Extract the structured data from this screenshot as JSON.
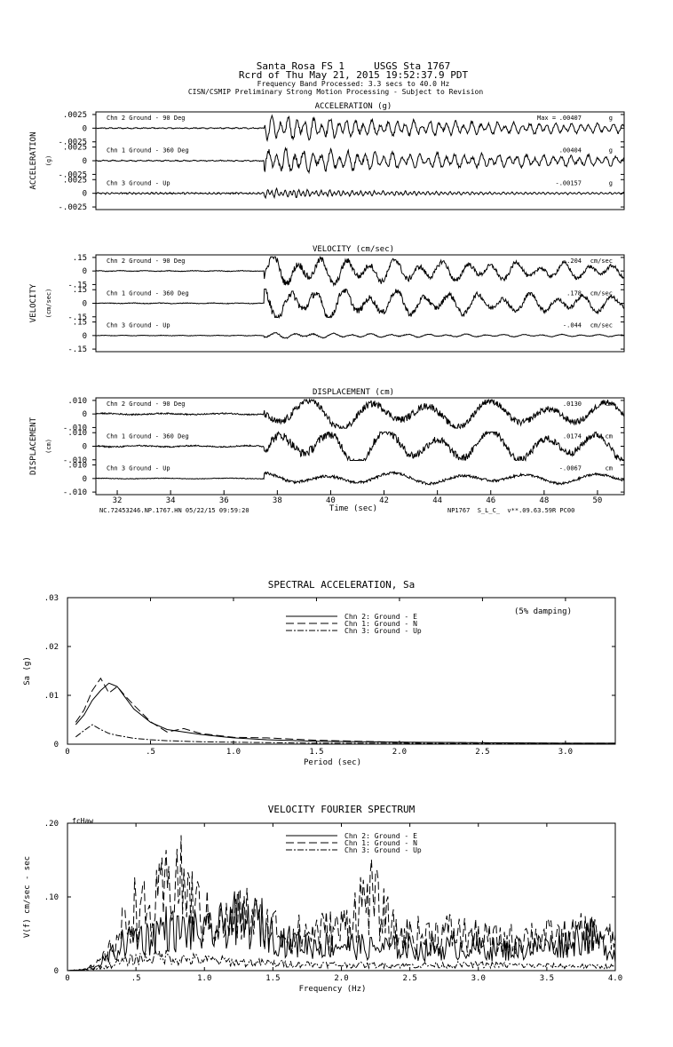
{
  "header": {
    "line1": "Santa Rosa FS 1     USGS Sta 1767",
    "line2": "Rcrd of Thu May 21, 2015 19:52:37.9 PDT",
    "line3": "Frequency Band Processed: 3.3 secs to 40.0 Hz",
    "line4": "CISN/CSMIP Preliminary Strong Motion Processing - Subject to Revision"
  },
  "footer": {
    "left": "NC.72453246.NP.1767.HN 05/22/15 09:59:20",
    "right": "NP1767  S_L_C_  v**.09.63.59R PC00"
  },
  "time_axis": {
    "label": "Time (sec)",
    "ticks": [
      "32",
      "34",
      "36",
      "38",
      "40",
      "42",
      "44",
      "46",
      "48",
      "50"
    ]
  },
  "stamp": "fcHaw",
  "colors": {
    "ink": "#000000",
    "background": "#ffffff"
  },
  "chart_data": [
    {
      "type": "line",
      "title": "ACCELERATION (g)",
      "ylabel": "ACCELERATION",
      "yunit": "(g)",
      "xlim": [
        31.2,
        51
      ],
      "ylim": [
        -0.0025,
        0.0025
      ],
      "tick_top": ".0025",
      "tick_zero": "0",
      "tick_bottom": "-.0025",
      "max_prefix": "Max =",
      "series": [
        {
          "name": "Chn 2  Ground - 90 Deg",
          "peak": ".00407",
          "unit": "g",
          "onset": 37.5,
          "amp": 0.0016,
          "pre": 0.00012,
          "freq": 3.2,
          "decay": 9,
          "residual": 0.00042
        },
        {
          "name": "Chn 1  Ground - 360 Deg",
          "peak": ".00404",
          "unit": "g",
          "onset": 37.5,
          "amp": 0.0015,
          "pre": 0.00012,
          "freq": 3.0,
          "decay": 9,
          "residual": 0.00052
        },
        {
          "name": "Chn 3  Ground - Up",
          "peak": "-.00157",
          "unit": "g",
          "onset": 37.5,
          "amp": 0.00065,
          "pre": 0.00018,
          "freq": 6.0,
          "decay": 5,
          "residual": 0.00012
        }
      ]
    },
    {
      "type": "line",
      "title": "VELOCITY (cm/sec)",
      "ylabel": "VELOCITY",
      "yunit": "(cm/sec)",
      "xlim": [
        31.2,
        51
      ],
      "ylim": [
        -0.15,
        0.15
      ],
      "tick_top": ".15",
      "tick_zero": "0",
      "tick_bottom": "-.15",
      "series": [
        {
          "name": "Chn 2  Ground - 90 Deg",
          "peak": "-.204",
          "unit": "cm/sec",
          "onset": 37.5,
          "amp": 0.12,
          "pre": 0.006,
          "freq": 1.1,
          "decay": 10,
          "residual": 0.045
        },
        {
          "name": "Chn 1  Ground - 360 Deg",
          "peak": ".178",
          "unit": "cm/sec",
          "onset": 37.5,
          "amp": 0.13,
          "pre": 0.006,
          "freq": 1.0,
          "decay": 10,
          "residual": 0.05
        },
        {
          "name": "Chn 3  Ground - Up",
          "peak": "-.044",
          "unit": "cm/sec",
          "onset": 37.5,
          "amp": 0.022,
          "pre": 0.004,
          "freq": 1.4,
          "decay": 6,
          "residual": 0.008
        }
      ]
    },
    {
      "type": "line",
      "title": "DISPLACEMENT (cm)",
      "ylabel": "DISPLACEMENT",
      "yunit": "(cm)",
      "xlim": [
        31.2,
        51
      ],
      "ylim": [
        -0.01,
        0.01
      ],
      "tick_top": ".010",
      "tick_zero": "0",
      "tick_bottom": "-.010",
      "series": [
        {
          "name": "Chn 2  Ground - 90 Deg",
          "peak": ".0130",
          "unit": "cm",
          "onset": 37.5,
          "amp": 0.006,
          "pre": 0.0008,
          "freq": 0.45,
          "decay": 25,
          "residual": 0.005
        },
        {
          "name": "Chn 1  Ground - 360 Deg",
          "peak": ".0174",
          "unit": "cm",
          "onset": 37.5,
          "amp": 0.007,
          "pre": 0.0008,
          "freq": 0.5,
          "decay": 25,
          "residual": 0.006
        },
        {
          "name": "Chn 3  Ground - Up",
          "peak": "-.0067",
          "unit": "cm",
          "onset": 37.5,
          "amp": 0.0022,
          "pre": 0.0004,
          "freq": 0.4,
          "decay": 25,
          "residual": 0.002
        }
      ]
    },
    {
      "type": "line",
      "title": "SPECTRAL ACCELERATION, Sa",
      "xlabel": "Period (sec)",
      "ylabel": "Sa (g)",
      "xlim": [
        0,
        3.3
      ],
      "ylim": [
        0,
        0.03
      ],
      "xticks": [
        "0",
        ".5",
        "1.0",
        "1.5",
        "2.0",
        "2.5",
        "3.0"
      ],
      "xtick_values": [
        0,
        0.5,
        1.0,
        1.5,
        2.0,
        2.5,
        3.0
      ],
      "yticks": [
        "0",
        ".01",
        ".02",
        ".03"
      ],
      "ytick_values": [
        0,
        0.01,
        0.02,
        0.03
      ],
      "annotation": "(5% damping)",
      "series": [
        {
          "name": "Chn 2: Ground - E",
          "dash": "",
          "x": [
            0.05,
            0.1,
            0.15,
            0.2,
            0.25,
            0.3,
            0.35,
            0.4,
            0.5,
            0.6,
            0.7,
            0.8,
            1.0,
            1.2,
            1.5,
            2.0,
            2.5,
            3.0,
            3.3
          ],
          "y": [
            0.004,
            0.006,
            0.009,
            0.011,
            0.0125,
            0.0118,
            0.0095,
            0.0072,
            0.0045,
            0.003,
            0.0025,
            0.002,
            0.0013,
            0.0009,
            0.0006,
            0.0004,
            0.0003,
            0.0002,
            0.0002
          ]
        },
        {
          "name": "Chn 1: Ground - N",
          "dash": "9,4",
          "x": [
            0.05,
            0.1,
            0.15,
            0.2,
            0.25,
            0.3,
            0.35,
            0.4,
            0.5,
            0.6,
            0.7,
            0.8,
            1.0,
            1.2,
            1.5,
            2.0,
            2.5,
            3.0,
            3.3
          ],
          "y": [
            0.0045,
            0.007,
            0.011,
            0.0135,
            0.0105,
            0.0118,
            0.0098,
            0.008,
            0.0046,
            0.0025,
            0.0032,
            0.0022,
            0.0014,
            0.0013,
            0.0008,
            0.0004,
            0.0003,
            0.0002,
            0.0002
          ]
        },
        {
          "name": "Chn 3: Ground - Up",
          "dash": "7,2,2,2",
          "x": [
            0.05,
            0.1,
            0.15,
            0.2,
            0.25,
            0.3,
            0.4,
            0.5,
            0.6,
            0.8,
            1.0,
            1.5,
            2.0,
            2.5,
            3.0,
            3.3
          ],
          "y": [
            0.0015,
            0.0028,
            0.004,
            0.003,
            0.0022,
            0.0018,
            0.0012,
            0.0009,
            0.0007,
            0.0005,
            0.0004,
            0.0002,
            0.0002,
            0.0001,
            0.0001,
            0.0001
          ]
        }
      ]
    },
    {
      "type": "line",
      "title": "VELOCITY FOURIER SPECTRUM",
      "xlabel": "Frequency (Hz)",
      "ylabel": "V(f)   cm/sec - sec",
      "xlim": [
        0,
        4.0
      ],
      "ylim": [
        0,
        0.2
      ],
      "xticks": [
        "0",
        ".5",
        "1.0",
        "1.5",
        "2.0",
        "2.5",
        "3.0",
        "3.5",
        "4.0"
      ],
      "xtick_values": [
        0,
        0.5,
        1.0,
        1.5,
        2.0,
        2.5,
        3.0,
        3.5,
        4.0
      ],
      "yticks": [
        "0",
        ".10",
        ".20"
      ],
      "ytick_values": [
        0,
        0.1,
        0.2
      ],
      "series": [
        {
          "name": "Chn 2: Ground - E",
          "dash": "",
          "x": [
            0.0,
            0.1,
            0.2,
            0.3,
            0.4,
            0.5,
            0.6,
            0.7,
            0.8,
            0.9,
            1.0,
            1.1,
            1.2,
            1.3,
            1.4,
            1.5,
            1.6,
            1.8,
            2.0,
            2.2,
            2.4,
            2.6,
            2.8,
            3.0,
            3.2,
            3.4,
            3.6,
            3.8,
            4.0
          ],
          "y": [
            0,
            0.001,
            0.006,
            0.022,
            0.045,
            0.06,
            0.055,
            0.075,
            0.065,
            0.068,
            0.06,
            0.07,
            0.09,
            0.075,
            0.085,
            0.06,
            0.05,
            0.042,
            0.045,
            0.038,
            0.04,
            0.035,
            0.04,
            0.038,
            0.035,
            0.04,
            0.045,
            0.06,
            0.03
          ]
        },
        {
          "name": "Chn 1: Ground - N",
          "dash": "9,4",
          "x": [
            0.0,
            0.1,
            0.2,
            0.3,
            0.4,
            0.5,
            0.6,
            0.7,
            0.8,
            0.9,
            1.0,
            1.1,
            1.2,
            1.3,
            1.4,
            1.5,
            1.6,
            1.8,
            2.0,
            2.2,
            2.4,
            2.6,
            2.8,
            3.0,
            3.2,
            3.4,
            3.6,
            3.8,
            4.0
          ],
          "y": [
            0,
            0.002,
            0.008,
            0.03,
            0.07,
            0.11,
            0.09,
            0.13,
            0.16,
            0.12,
            0.09,
            0.08,
            0.08,
            0.1,
            0.08,
            0.075,
            0.06,
            0.065,
            0.07,
            0.13,
            0.06,
            0.06,
            0.065,
            0.055,
            0.05,
            0.06,
            0.055,
            0.065,
            0.05
          ]
        },
        {
          "name": "Chn 3: Ground - Up",
          "dash": "7,2,2,2",
          "x": [
            0.0,
            0.1,
            0.2,
            0.3,
            0.4,
            0.5,
            0.6,
            0.7,
            0.8,
            1.0,
            1.2,
            1.5,
            2.0,
            2.5,
            3.0,
            3.5,
            4.0
          ],
          "y": [
            0,
            0.001,
            0.003,
            0.008,
            0.015,
            0.02,
            0.022,
            0.025,
            0.02,
            0.018,
            0.015,
            0.012,
            0.01,
            0.009,
            0.01,
            0.008,
            0.007
          ]
        }
      ]
    }
  ]
}
